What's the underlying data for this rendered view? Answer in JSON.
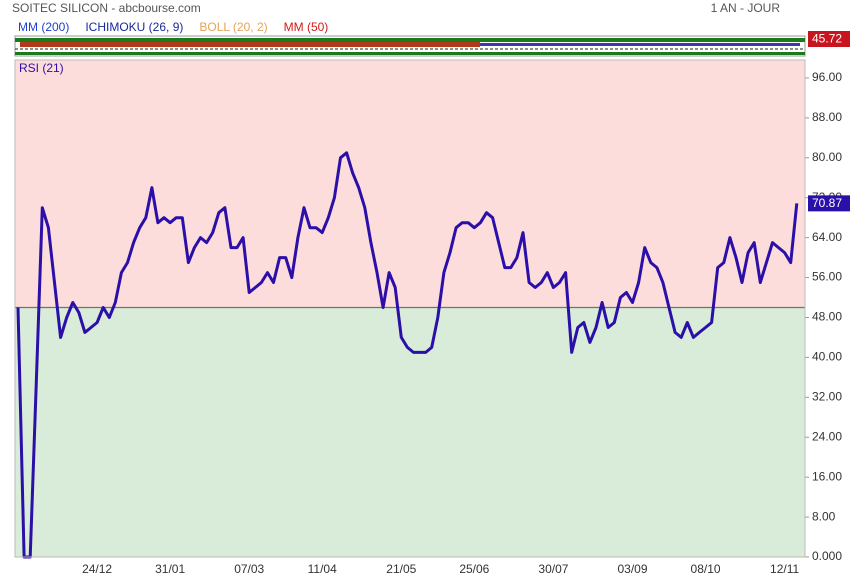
{
  "header": {
    "title": "SOITEC SILICON - abcbourse.com",
    "period": "1 AN - JOUR"
  },
  "legend": [
    {
      "name": "MM (200)",
      "color": "#1f3fd1"
    },
    {
      "name": "ICHIMOKU (26, 9)",
      "color": "#1a2a9a"
    },
    {
      "name": "BOLL (20, 2)",
      "color": "#e3a35a"
    },
    {
      "name": "MM (50)",
      "color": "#d21a1a"
    }
  ],
  "price_panel": {
    "last_value": 45.72,
    "color": "#c8141e"
  },
  "chart_data": {
    "type": "line",
    "title": "RSI (21)",
    "categories": [
      null,
      null,
      null,
      null,
      null,
      null,
      null,
      null,
      null,
      null,
      null,
      null,
      null,
      "24/12",
      null,
      null,
      null,
      null,
      null,
      null,
      null,
      null,
      null,
      null,
      null,
      "31/01",
      null,
      null,
      null,
      null,
      null,
      null,
      null,
      null,
      null,
      null,
      null,
      null,
      "07/03",
      null,
      null,
      null,
      null,
      null,
      null,
      null,
      null,
      null,
      null,
      null,
      "11/04",
      null,
      null,
      null,
      null,
      null,
      null,
      null,
      null,
      null,
      null,
      null,
      null,
      "21/05",
      null,
      null,
      null,
      null,
      null,
      null,
      null,
      null,
      null,
      null,
      null,
      "25/06",
      null,
      null,
      null,
      null,
      null,
      null,
      null,
      null,
      null,
      null,
      null,
      null,
      "30/07",
      null,
      null,
      null,
      null,
      null,
      null,
      null,
      null,
      null,
      null,
      null,
      null,
      "03/09",
      null,
      null,
      null,
      null,
      null,
      null,
      null,
      null,
      null,
      null,
      null,
      "08/10",
      null,
      null,
      null,
      null,
      null,
      null,
      null,
      null,
      null,
      null,
      null,
      null,
      "12/11",
      null,
      null
    ],
    "series": [
      {
        "name": "RSI (21)",
        "color": "#2a0fa8",
        "values": [
          50,
          0,
          0,
          35,
          70,
          66,
          55,
          44,
          48,
          51,
          49,
          45,
          46,
          47,
          50,
          48,
          51,
          57,
          59,
          63,
          66,
          68,
          74,
          67,
          68,
          67,
          68,
          68,
          59,
          62,
          64,
          63,
          65,
          69,
          70,
          62,
          62,
          64,
          53,
          54,
          55,
          57,
          55,
          60,
          60,
          56,
          64,
          70,
          66,
          66,
          65,
          68,
          72,
          80,
          81,
          77,
          74,
          70,
          63,
          57,
          50,
          57,
          54,
          44,
          42,
          41,
          41,
          41,
          42,
          48,
          57,
          61,
          66,
          67,
          67,
          66,
          67,
          69,
          68,
          63,
          58,
          58,
          60,
          65,
          55,
          54,
          55,
          57,
          54,
          55,
          57,
          41,
          46,
          47,
          43,
          46,
          51,
          46,
          47,
          52,
          53,
          51,
          55,
          62,
          59,
          58,
          55,
          50,
          45,
          44,
          47,
          44,
          45,
          46,
          47,
          58,
          59,
          64,
          60,
          55,
          61,
          63,
          55,
          59,
          63,
          62,
          61,
          59,
          70.87
        ]
      }
    ],
    "ylim": [
      0,
      100
    ],
    "yticks": [
      {
        "value": 0,
        "label": "0.000"
      },
      {
        "value": 8,
        "label": "8.00"
      },
      {
        "value": 16,
        "label": "16.00"
      },
      {
        "value": 24,
        "label": "24.00"
      },
      {
        "value": 32,
        "label": "32.00"
      },
      {
        "value": 40,
        "label": "40.00"
      },
      {
        "value": 48,
        "label": "48.00"
      },
      {
        "value": 56,
        "label": "56.00"
      },
      {
        "value": 64,
        "label": "64.00"
      },
      {
        "value": 72,
        "label": "72.00"
      },
      {
        "value": 80,
        "label": "80.00"
      },
      {
        "value": 88,
        "label": "88.00"
      },
      {
        "value": 96,
        "label": "96.00"
      }
    ],
    "reference_line": 50,
    "upper_color": "#fddcdc",
    "lower_color": "#d9ebd9"
  }
}
